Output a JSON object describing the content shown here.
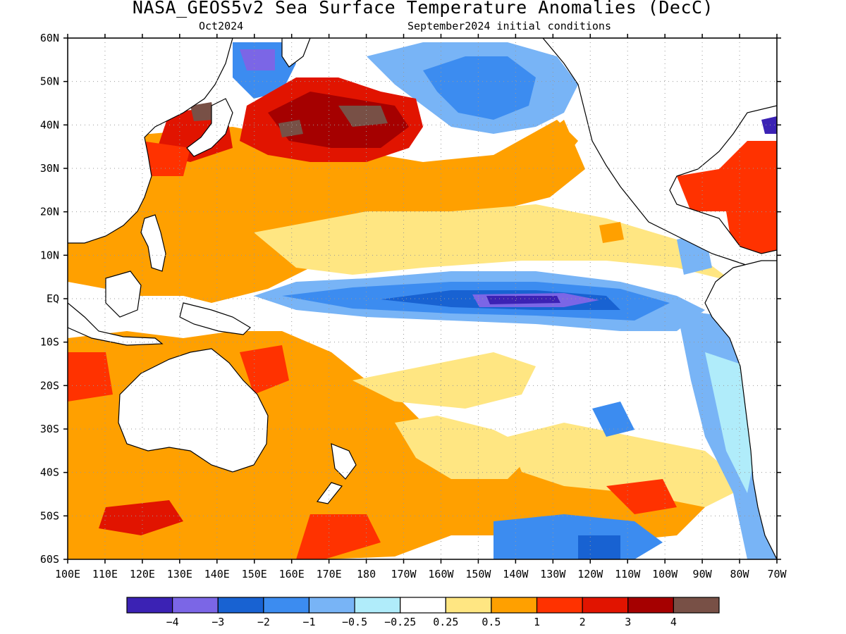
{
  "title": "NASA_GEOS5v2 Sea Surface Temperature Anomalies (DecC)",
  "subtitle_left": "Oct2024",
  "subtitle_right": "September2024 initial conditions",
  "lat_labels": [
    "60N",
    "50N",
    "40N",
    "30N",
    "20N",
    "10N",
    "EQ",
    "10S",
    "20S",
    "30S",
    "40S",
    "50S",
    "60S"
  ],
  "lon_labels": [
    "100E",
    "110E",
    "120E",
    "130E",
    "140E",
    "150E",
    "160E",
    "170E",
    "180",
    "170W",
    "160W",
    "150W",
    "140W",
    "130W",
    "120W",
    "110W",
    "100W",
    "90W",
    "80W",
    "70W"
  ],
  "colorbar": {
    "colors": [
      "#3b22b4",
      "#7b66e6",
      "#1862d2",
      "#3c8cf0",
      "#78b4f6",
      "#b0ecfa",
      "#ffffff",
      "#ffe682",
      "#ffa000",
      "#ff3200",
      "#e11400",
      "#a50000",
      "#785046"
    ],
    "labels": [
      "-4",
      "-3",
      "-2",
      "-1",
      "-0.5",
      "-0.25",
      "0.25",
      "0.5",
      "1",
      "2",
      "3",
      "4"
    ]
  },
  "colors": {
    "land": "#ffffff",
    "coast": "#000000",
    "grid": "#999999"
  }
}
